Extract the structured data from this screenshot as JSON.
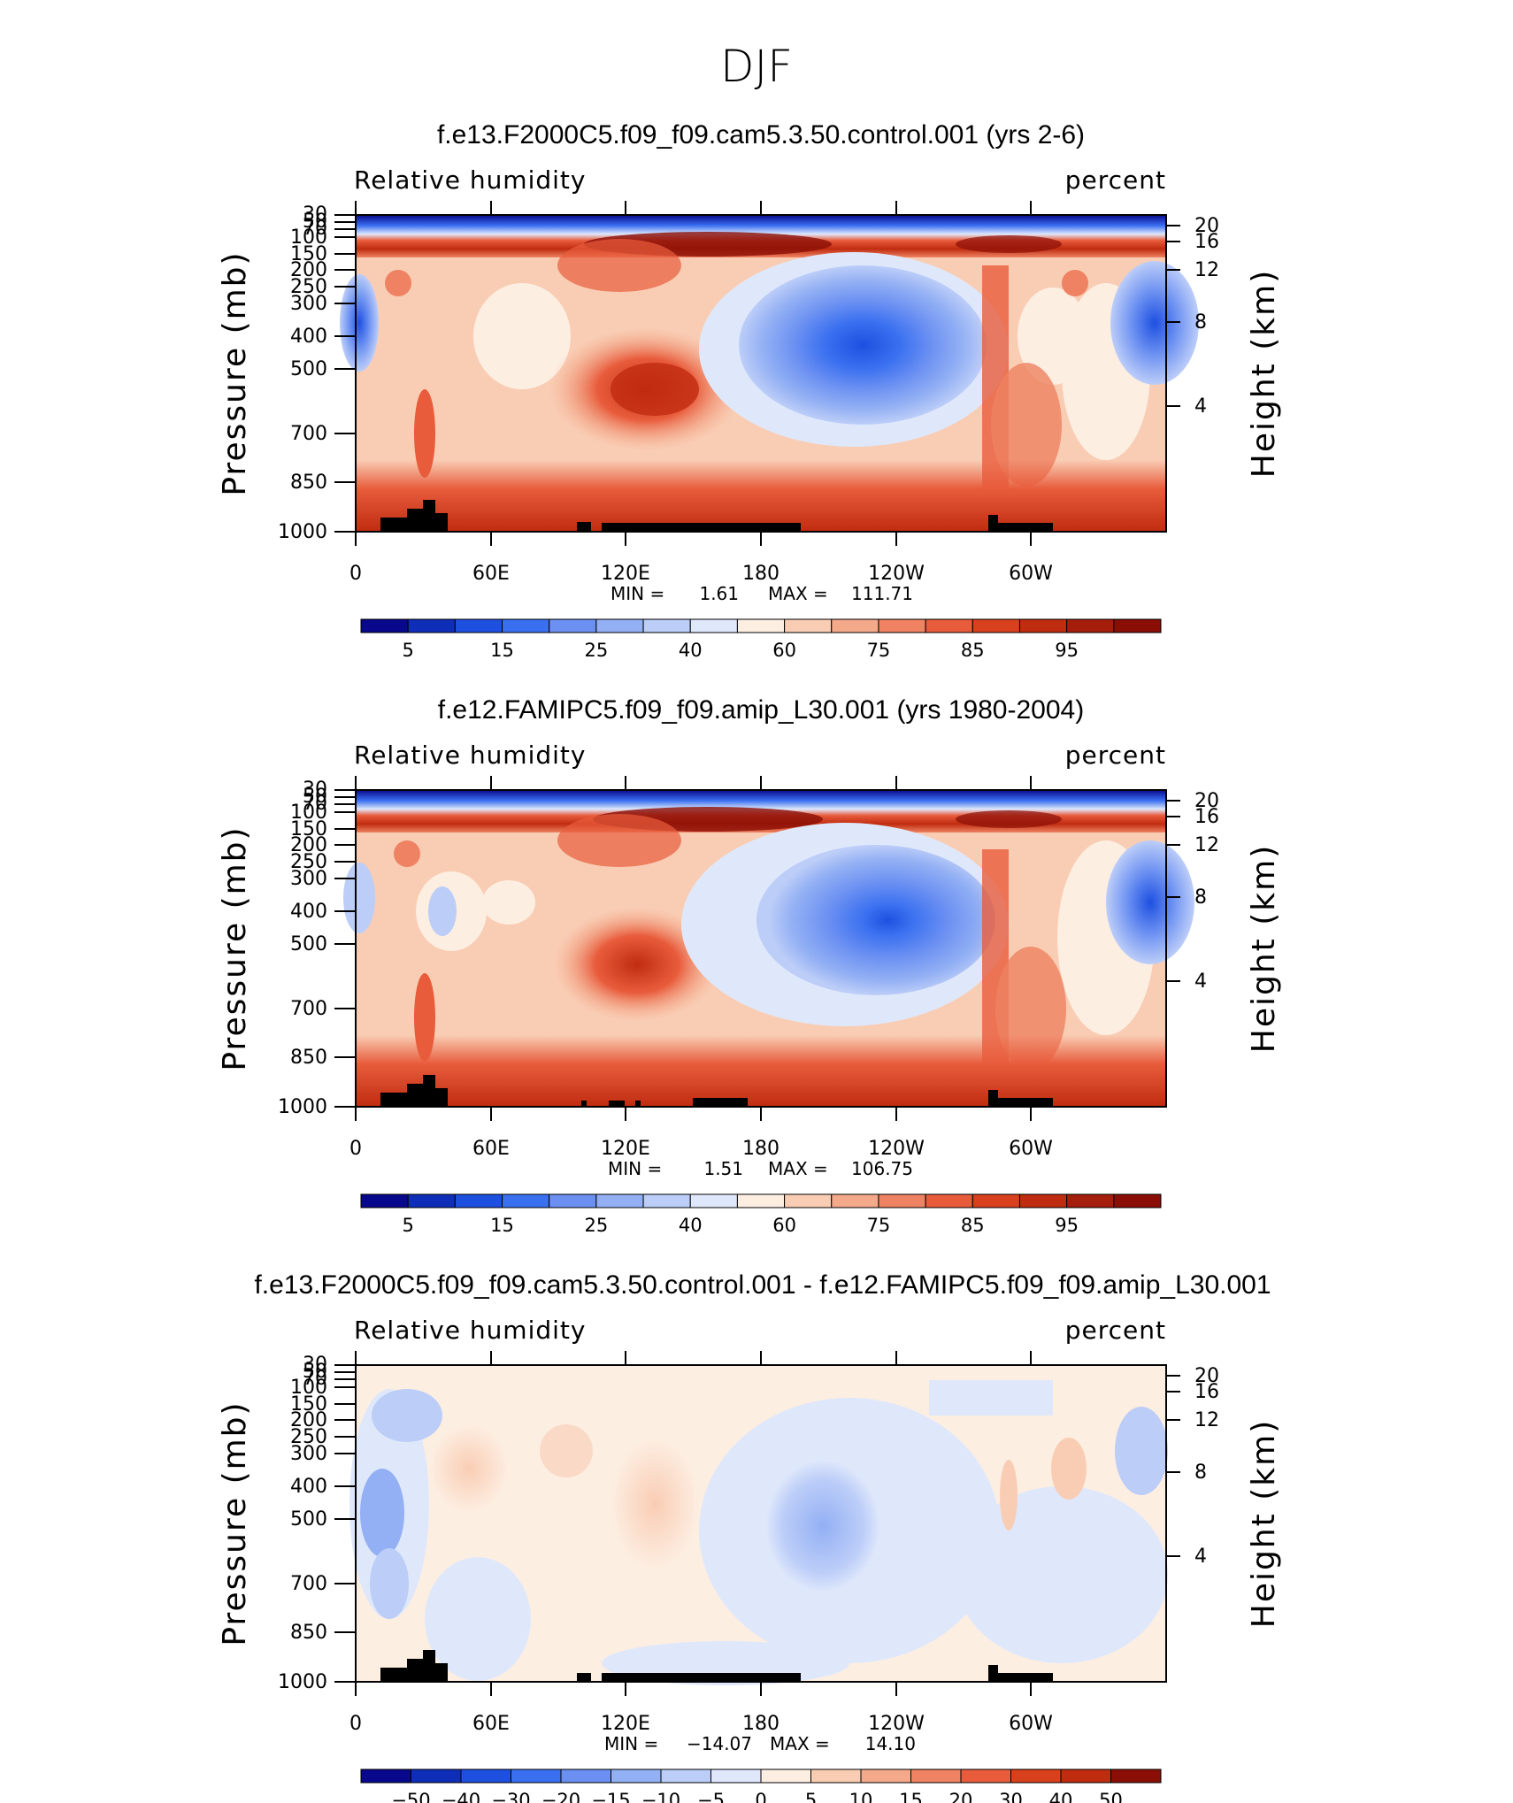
{
  "page_title": "DJF",
  "chart_data": [
    {
      "type": "heatmap",
      "title": "f.e13.F2000C5.f09_f09.cam5.3.50.control.001 (yrs 2-6)",
      "variable": "Relative humidity",
      "units": "percent",
      "ylabel": "Pressure (mb)",
      "y2label": "Height (km)",
      "yticks": [
        30,
        50,
        70,
        100,
        150,
        200,
        250,
        300,
        400,
        500,
        700,
        850,
        1000
      ],
      "yticks_right": [
        20,
        16,
        12,
        8,
        4
      ],
      "xticks": [
        "0",
        "60E",
        "120E",
        "180",
        "120W",
        "60W"
      ],
      "stats": {
        "min_label": "MIN =",
        "min": "1.61",
        "max_label": "MAX =",
        "max": "111.71"
      },
      "colorbar_labels": [
        "5",
        "15",
        "25",
        "40",
        "60",
        "75",
        "85",
        "95"
      ]
    },
    {
      "type": "heatmap",
      "title": "f.e12.FAMIPC5.f09_f09.amip_L30.001 (yrs 1980-2004)",
      "variable": "Relative humidity",
      "units": "percent",
      "ylabel": "Pressure (mb)",
      "y2label": "Height (km)",
      "yticks": [
        30,
        50,
        70,
        100,
        150,
        200,
        250,
        300,
        400,
        500,
        700,
        850,
        1000
      ],
      "yticks_right": [
        20,
        16,
        12,
        8,
        4
      ],
      "xticks": [
        "0",
        "60E",
        "120E",
        "180",
        "120W",
        "60W"
      ],
      "stats": {
        "min_label": "MIN =",
        "min": "1.51",
        "max_label": "MAX =",
        "max": "106.75"
      },
      "colorbar_labels": [
        "5",
        "15",
        "25",
        "40",
        "60",
        "75",
        "85",
        "95"
      ]
    },
    {
      "type": "heatmap",
      "title": "f.e13.F2000C5.f09_f09.cam5.3.50.control.001 - f.e12.FAMIPC5.f09_f09.amip_L30.001",
      "variable": "Relative humidity",
      "units": "percent",
      "ylabel": "Pressure (mb)",
      "y2label": "Height (km)",
      "yticks": [
        30,
        50,
        70,
        100,
        150,
        200,
        250,
        300,
        400,
        500,
        700,
        850,
        1000
      ],
      "yticks_right": [
        20,
        16,
        12,
        8,
        4
      ],
      "xticks": [
        "0",
        "60E",
        "120E",
        "180",
        "120W",
        "60W"
      ],
      "stats": {
        "min_label": "MIN =",
        "min": "−14.07",
        "max_label": "MAX =",
        "max": "14.10"
      },
      "colorbar_labels": [
        "−50",
        "−40",
        "−30",
        "−20",
        "−15",
        "−10",
        "−5",
        "0",
        "5",
        "10",
        "15",
        "20",
        "30",
        "40",
        "50"
      ]
    }
  ],
  "colors": {
    "abs_scale": [
      "#08088c",
      "#0e2eb8",
      "#1e50e0",
      "#3a70f0",
      "#6b90f2",
      "#93b0f4",
      "#bccdf8",
      "#dfe8fb",
      "#fdeee2",
      "#f9cdb4",
      "#f4a98a",
      "#ee8262",
      "#e85c3c",
      "#d9401e",
      "#c02c10",
      "#a51e0c",
      "#8a0e06"
    ],
    "diff_scale": [
      "#08088c",
      "#0e2eb8",
      "#1e50e0",
      "#3a70f0",
      "#6b90f2",
      "#93b0f4",
      "#bccdf8",
      "#dfe8fb",
      "#fdeee2",
      "#f9cdb4",
      "#f4a98a",
      "#ee8262",
      "#e85c3c",
      "#d9401e",
      "#c02c10",
      "#8a0e06"
    ],
    "topography": "#000000"
  }
}
